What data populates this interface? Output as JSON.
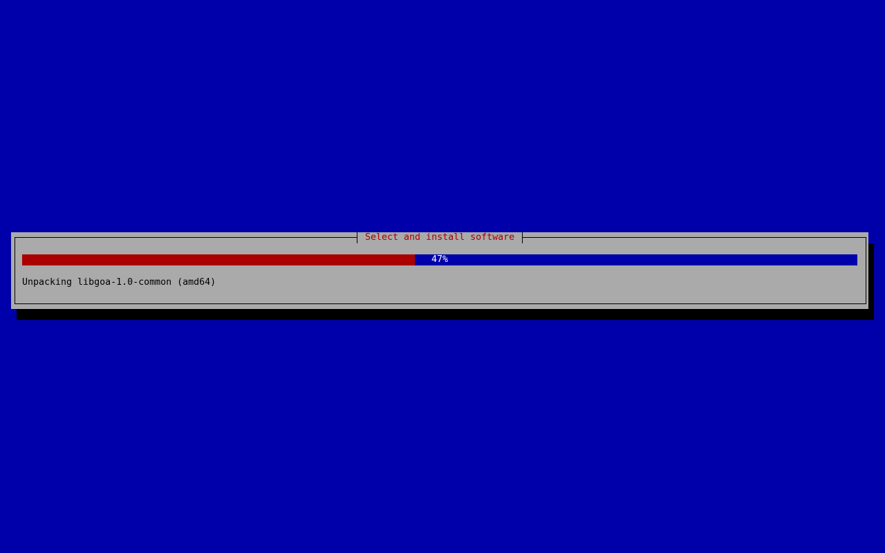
{
  "dialog": {
    "title": "Select and install software",
    "progress": {
      "percent": 47,
      "label": "47%"
    },
    "status": "Unpacking libgoa-1.0-common (amd64)"
  },
  "colors": {
    "background": "#0000aa",
    "dialog": "#aaaaaa",
    "progress_fill": "#aa0000",
    "title": "#aa0000"
  }
}
